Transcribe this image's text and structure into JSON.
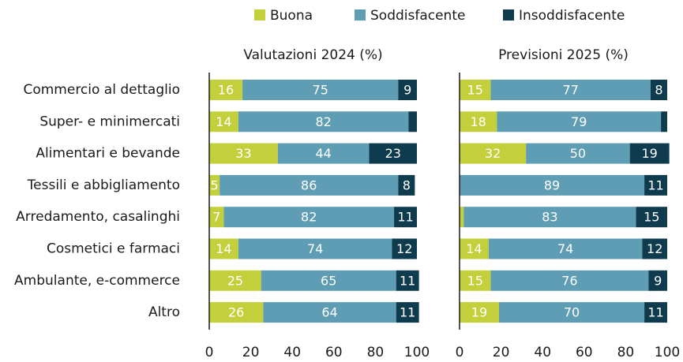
{
  "chart_data": {
    "type": "stacked_bar",
    "categories": [
      "Commercio al dettaglio",
      "Super- e minimercati",
      "Alimentari e bevande",
      "Tessili e abbigliamento",
      "Arredamento, casalinghi",
      "Cosmetici e farmaci",
      "Ambulante, e-commerce",
      "Altro"
    ],
    "series": [
      {
        "name": "Buona",
        "color": "#c3d03b"
      },
      {
        "name": "Soddisfacente",
        "color": "#5e9db3"
      },
      {
        "name": "Insoddisfacente",
        "color": "#0f3b4f"
      }
    ],
    "panels": [
      {
        "title": "Valutazioni 2024 (%)",
        "series": [
          {
            "values": [
              16,
              14,
              33,
              5,
              7,
              14,
              25,
              26
            ]
          },
          {
            "values": [
              75,
              82,
              44,
              86,
              82,
              74,
              65,
              64
            ]
          },
          {
            "values": [
              9,
              4,
              23,
              8,
              11,
              12,
              11,
              11
            ]
          }
        ]
      },
      {
        "title": "Previsioni 2025 (%)",
        "series": [
          {
            "values": [
              15,
              18,
              32,
              0,
              2,
              14,
              15,
              19
            ]
          },
          {
            "values": [
              77,
              79,
              50,
              89,
              83,
              74,
              76,
              70
            ]
          },
          {
            "values": [
              8,
              3,
              19,
              11,
              15,
              12,
              9,
              11
            ]
          }
        ]
      }
    ],
    "xlim": [
      0,
      100
    ],
    "xticks": [
      0,
      20,
      40,
      60,
      80,
      100
    ]
  }
}
